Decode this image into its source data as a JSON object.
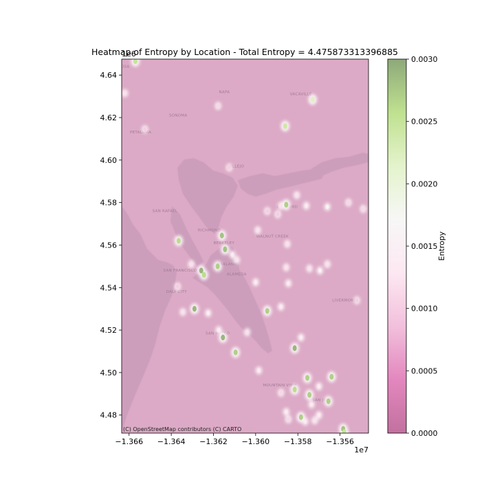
{
  "chart_data": {
    "type": "heatmap",
    "title": "Heatmap of Entropy by Location - Total Entropy = 4.475873313396885",
    "x_axis": {
      "range": [
        -1.36635,
        -1.35465
      ],
      "ticks": [
        -1.366,
        -1.364,
        -1.362,
        -1.36,
        -1.358,
        -1.356
      ],
      "tick_labels": [
        "−1.366",
        "−1.364",
        "−1.362",
        "−1.360",
        "−1.358",
        "−1.356"
      ],
      "offset_label": "1e7"
    },
    "y_axis": {
      "range": [
        4.4715,
        4.6475
      ],
      "ticks": [
        4.48,
        4.5,
        4.52,
        4.54,
        4.56,
        4.58,
        4.6,
        4.62,
        4.64
      ],
      "tick_labels": [
        "4.48",
        "4.50",
        "4.52",
        "4.54",
        "4.56",
        "4.58",
        "4.60",
        "4.62",
        "4.64"
      ],
      "offset_label": "1e6"
    },
    "colorbar": {
      "label": "Entropy",
      "range": [
        0,
        0.003
      ],
      "ticks": [
        0,
        0.0005,
        0.001,
        0.0015,
        0.002,
        0.0025,
        0.003
      ],
      "tick_labels": [
        "0.0000",
        "0.0005",
        "0.0010",
        "0.0015",
        "0.0020",
        "0.0025",
        "0.0030"
      ],
      "colormap": "PiYG",
      "colors": [
        "#c2719f",
        "#e387be",
        "#f2c0dc",
        "#fde8f2",
        "#f7f7f6",
        "#e4f3cc",
        "#bfe18f",
        "#8da97a"
      ]
    },
    "basemap": {
      "attribution": "(C) OpenStreetMap contributors (C) CARTO",
      "land_color": "#dcaac6",
      "water_color": "#cc9ebb",
      "place_labels": [
        {
          "text": "ROSA",
          "x": -1.36625,
          "y": 4.6435
        },
        {
          "text": "PETALUMA",
          "x": -1.36545,
          "y": 4.6125
        },
        {
          "text": "SONOMA",
          "x": -1.36367,
          "y": 4.6205
        },
        {
          "text": "NAPA",
          "x": -1.36148,
          "y": 4.6315
        },
        {
          "text": "VALLEJO",
          "x": -1.36095,
          "y": 4.5965
        },
        {
          "text": "SAN RAFAEL",
          "x": -1.3643,
          "y": 4.5755
        },
        {
          "text": "RICHMOND",
          "x": -1.3622,
          "y": 4.5665
        },
        {
          "text": "BERKELEY",
          "x": -1.3615,
          "y": 4.5605
        },
        {
          "text": "OAKLAND",
          "x": -1.36135,
          "y": 4.5505
        },
        {
          "text": "SAN FRANCISCO",
          "x": -1.36358,
          "y": 4.5475
        },
        {
          "text": "ALAMEDA",
          "x": -1.3609,
          "y": 4.5458
        },
        {
          "text": "DALY CITY",
          "x": -1.36375,
          "y": 4.5375
        },
        {
          "text": "SAN MATEO",
          "x": -1.3618,
          "y": 4.518
        },
        {
          "text": "CONCORD",
          "x": -1.3585,
          "y": 4.5775
        },
        {
          "text": "WALNUT CREEK",
          "x": -1.3592,
          "y": 4.5635
        },
        {
          "text": "MOUNTAIN VIEW",
          "x": -1.35885,
          "y": 4.4935
        },
        {
          "text": "SAN JOSE",
          "x": -1.35685,
          "y": 4.4865
        },
        {
          "text": "VACAVILLE",
          "x": -1.35785,
          "y": 4.6305
        },
        {
          "text": "LIVERMORE",
          "x": -1.3558,
          "y": 4.5335
        }
      ]
    },
    "hotspots": [
      {
        "x": -1.3657,
        "y": 4.6465,
        "v": 0.0025
      },
      {
        "x": -1.3662,
        "y": 4.6315,
        "v": 0.0012
      },
      {
        "x": -1.36525,
        "y": 4.6145,
        "v": 0.001
      },
      {
        "x": -1.36178,
        "y": 4.6255,
        "v": 0.0011
      },
      {
        "x": -1.3586,
        "y": 4.616,
        "v": 0.0024
      },
      {
        "x": -1.3573,
        "y": 4.6285,
        "v": 0.0022
      },
      {
        "x": -1.36125,
        "y": 4.5965,
        "v": 0.001
      },
      {
        "x": -1.35805,
        "y": 4.5835,
        "v": 0.0012
      },
      {
        "x": -1.3576,
        "y": 4.5785,
        "v": 0.0013
      },
      {
        "x": -1.35855,
        "y": 4.579,
        "v": 0.0027
      },
      {
        "x": -1.3588,
        "y": 4.5785,
        "v": 0.0012
      },
      {
        "x": -1.35945,
        "y": 4.576,
        "v": 0.001
      },
      {
        "x": -1.35895,
        "y": 4.5745,
        "v": 0.001
      },
      {
        "x": -1.3566,
        "y": 4.578,
        "v": 0.0018
      },
      {
        "x": -1.3556,
        "y": 4.58,
        "v": 0.0011
      },
      {
        "x": -1.3549,
        "y": 4.577,
        "v": 0.0011
      },
      {
        "x": -1.36365,
        "y": 4.562,
        "v": 0.0026
      },
      {
        "x": -1.3616,
        "y": 4.5645,
        "v": 0.0028
      },
      {
        "x": -1.3599,
        "y": 4.567,
        "v": 0.0012
      },
      {
        "x": -1.3585,
        "y": 4.5605,
        "v": 0.0012
      },
      {
        "x": -1.36145,
        "y": 4.558,
        "v": 0.0028
      },
      {
        "x": -1.3611,
        "y": 4.5555,
        "v": 0.0013
      },
      {
        "x": -1.3609,
        "y": 4.553,
        "v": 0.0012
      },
      {
        "x": -1.36305,
        "y": 4.551,
        "v": 0.0012
      },
      {
        "x": -1.3618,
        "y": 4.55,
        "v": 0.0027
      },
      {
        "x": -1.36258,
        "y": 4.548,
        "v": 0.0029
      },
      {
        "x": -1.36245,
        "y": 4.546,
        "v": 0.0026
      },
      {
        "x": -1.35855,
        "y": 4.5495,
        "v": 0.0012
      },
      {
        "x": -1.35745,
        "y": 4.549,
        "v": 0.0012
      },
      {
        "x": -1.35695,
        "y": 4.548,
        "v": 0.0016
      },
      {
        "x": -1.3566,
        "y": 4.551,
        "v": 0.0012
      },
      {
        "x": -1.36,
        "y": 4.5425,
        "v": 0.0013
      },
      {
        "x": -1.35845,
        "y": 4.542,
        "v": 0.0013
      },
      {
        "x": -1.3637,
        "y": 4.5405,
        "v": 0.001
      },
      {
        "x": -1.3629,
        "y": 4.53,
        "v": 0.0029
      },
      {
        "x": -1.36225,
        "y": 4.528,
        "v": 0.0014
      },
      {
        "x": -1.36345,
        "y": 4.5285,
        "v": 0.0012
      },
      {
        "x": -1.35945,
        "y": 4.529,
        "v": 0.0027
      },
      {
        "x": -1.3588,
        "y": 4.531,
        "v": 0.0013
      },
      {
        "x": -1.3552,
        "y": 4.534,
        "v": 0.001
      },
      {
        "x": -1.3604,
        "y": 4.519,
        "v": 0.0012
      },
      {
        "x": -1.36175,
        "y": 4.52,
        "v": 0.0013
      },
      {
        "x": -1.36155,
        "y": 4.5165,
        "v": 0.0029
      },
      {
        "x": -1.35785,
        "y": 4.5165,
        "v": 0.0014
      },
      {
        "x": -1.35815,
        "y": 4.5115,
        "v": 0.0029
      },
      {
        "x": -1.36095,
        "y": 4.5095,
        "v": 0.0027
      },
      {
        "x": -1.35985,
        "y": 4.501,
        "v": 0.0013
      },
      {
        "x": -1.35755,
        "y": 4.4975,
        "v": 0.0027
      },
      {
        "x": -1.3564,
        "y": 4.498,
        "v": 0.0027
      },
      {
        "x": -1.35815,
        "y": 4.492,
        "v": 0.0026
      },
      {
        "x": -1.35745,
        "y": 4.4895,
        "v": 0.0027
      },
      {
        "x": -1.357,
        "y": 4.4935,
        "v": 0.0013
      },
      {
        "x": -1.35655,
        "y": 4.4865,
        "v": 0.0027
      },
      {
        "x": -1.35735,
        "y": 4.485,
        "v": 0.0013
      },
      {
        "x": -1.3588,
        "y": 4.4905,
        "v": 0.0011
      },
      {
        "x": -1.35855,
        "y": 4.4815,
        "v": 0.0013
      },
      {
        "x": -1.35785,
        "y": 4.479,
        "v": 0.0027
      },
      {
        "x": -1.35765,
        "y": 4.477,
        "v": 0.0013
      },
      {
        "x": -1.357,
        "y": 4.48,
        "v": 0.0013
      },
      {
        "x": -1.3572,
        "y": 4.4775,
        "v": 0.0012
      },
      {
        "x": -1.35845,
        "y": 4.478,
        "v": 0.0011
      },
      {
        "x": -1.35585,
        "y": 4.4735,
        "v": 0.0028
      },
      {
        "x": -1.3558,
        "y": 4.472,
        "v": 0.0025
      }
    ]
  }
}
